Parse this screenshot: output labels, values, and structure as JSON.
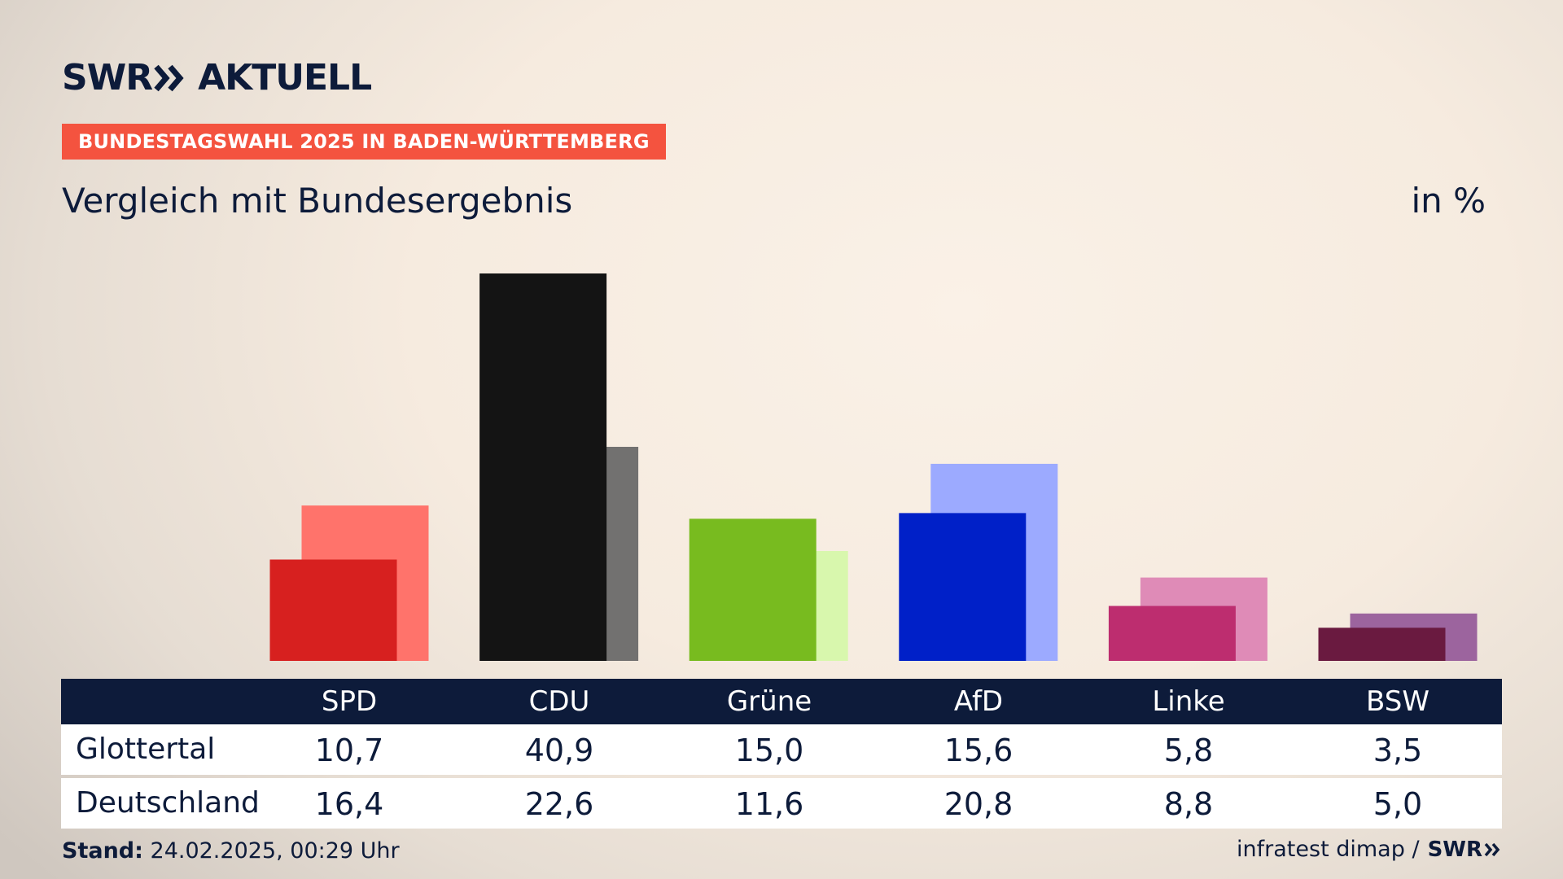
{
  "header": {
    "logo_swr": "SWR",
    "logo_aktuell": "AKTUELL",
    "badge": "BUNDESTAGSWAHL 2025 IN BADEN-WÜRTTEMBERG",
    "subtitle": "Vergleich mit Bundesergebnis",
    "unit": "in %"
  },
  "chart_data": {
    "type": "bar",
    "title": "Vergleich mit Bundesergebnis",
    "ylabel": "in %",
    "ylim": [
      0,
      45
    ],
    "categories": [
      "SPD",
      "CDU",
      "Grüne",
      "AfD",
      "Linke",
      "BSW"
    ],
    "series": [
      {
        "name": "Glottertal",
        "values": [
          10.7,
          40.9,
          15.0,
          15.6,
          5.8,
          3.5
        ],
        "colors": [
          "#d7201f",
          "#141414",
          "#78bb1f",
          "#0020c8",
          "#bd2d6f",
          "#6a1a40"
        ]
      },
      {
        "name": "Deutschland",
        "values": [
          16.4,
          22.6,
          11.6,
          20.8,
          8.8,
          5.0
        ],
        "colors": [
          "#ff736b",
          "#727170",
          "#d8f7ad",
          "#9caaff",
          "#df8bb7",
          "#9c649e"
        ]
      }
    ]
  },
  "table": {
    "rows": [
      {
        "label": "Glottertal",
        "values": [
          "10,7",
          "40,9",
          "15,0",
          "15,6",
          "5,8",
          "3,5"
        ]
      },
      {
        "label": "Deutschland",
        "values": [
          "16,4",
          "22,6",
          "11,6",
          "20,8",
          "8,8",
          "5,0"
        ]
      }
    ]
  },
  "footer": {
    "stand_label": "Stand:",
    "stand_value": "24.02.2025, 00:29 Uhr",
    "source": "infratest dimap /",
    "source_logo": "SWR"
  }
}
